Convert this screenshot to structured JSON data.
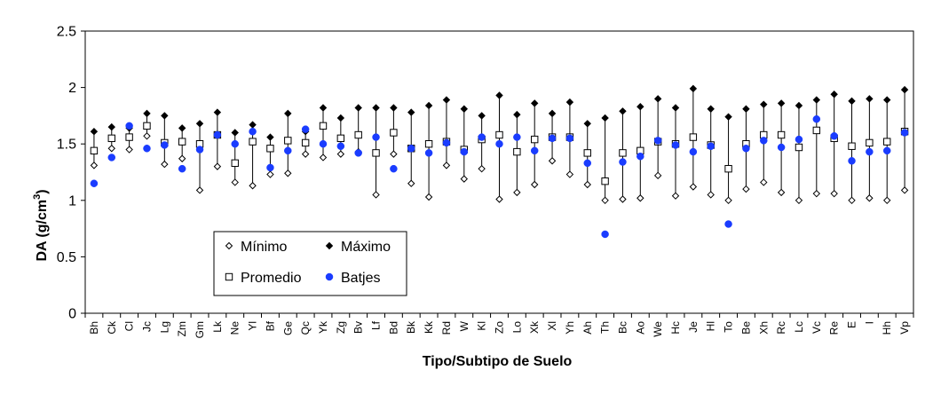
{
  "chart_data": {
    "type": "scatter",
    "xlabel": "Tipo/Subtipo de Suelo",
    "ylabel": "DA (g/cm3)",
    "ylabel_main": "DA (g/cm",
    "ylabel_sup": "3",
    "ylabel_close": ")",
    "ylim": [
      0,
      2.5
    ],
    "yticks": [
      "0",
      "0.5",
      "1",
      "1.5",
      "2",
      "2.5"
    ],
    "ytick_values": [
      0,
      0.5,
      1,
      1.5,
      2,
      2.5
    ],
    "grid": false,
    "legend_position": "bottom-left",
    "categories": [
      "Bh",
      "Ck",
      "Cl",
      "Jc",
      "Lg",
      "Zm",
      "Gm",
      "Lk",
      "Ne",
      "Yl",
      "Bf",
      "Ge",
      "Qc",
      "Yk",
      "Zg",
      "Bv",
      "Lf",
      "Bd",
      "Bk",
      "Kk",
      "Rd",
      "W",
      "Kl",
      "Zo",
      "Lo",
      "Xk",
      "Xl",
      "Yh",
      "Ah",
      "Th",
      "Bc",
      "Ao",
      "We",
      "Hc",
      "Je",
      "Hl",
      "To",
      "Be",
      "Xh",
      "Rc",
      "Lc",
      "Vc",
      "Re",
      "E",
      "I",
      "Hh",
      "Vp"
    ],
    "series": [
      {
        "name": "Mínimo",
        "marker": "diamond-open",
        "values": [
          1.31,
          1.46,
          1.45,
          1.57,
          1.32,
          1.37,
          1.09,
          1.3,
          1.16,
          1.13,
          1.23,
          1.24,
          1.41,
          1.38,
          1.41,
          1.43,
          1.05,
          1.41,
          1.15,
          1.03,
          1.31,
          1.19,
          1.28,
          1.01,
          1.07,
          1.14,
          1.35,
          1.23,
          1.14,
          1.0,
          1.01,
          1.02,
          1.22,
          1.04,
          1.12,
          1.05,
          1.0,
          1.1,
          1.16,
          1.07,
          1.0,
          1.06,
          1.06,
          1.0,
          1.02,
          1.0,
          1.09
        ]
      },
      {
        "name": "Máximo",
        "marker": "diamond-filled",
        "values": [
          1.61,
          1.65,
          1.64,
          1.77,
          1.75,
          1.64,
          1.68,
          1.78,
          1.6,
          1.67,
          1.56,
          1.77,
          1.61,
          1.82,
          1.73,
          1.82,
          1.82,
          1.82,
          1.78,
          1.84,
          1.89,
          1.81,
          1.75,
          1.93,
          1.76,
          1.86,
          1.77,
          1.87,
          1.68,
          1.73,
          1.79,
          1.83,
          1.9,
          1.82,
          1.99,
          1.81,
          1.74,
          1.81,
          1.85,
          1.86,
          1.84,
          1.89,
          1.94,
          1.88,
          1.9,
          1.89,
          1.98
        ]
      },
      {
        "name": "Promedio",
        "marker": "square-open",
        "values": [
          1.44,
          1.55,
          1.56,
          1.66,
          1.51,
          1.52,
          1.5,
          1.58,
          1.33,
          1.52,
          1.46,
          1.53,
          1.51,
          1.66,
          1.55,
          1.58,
          1.42,
          1.6,
          1.46,
          1.5,
          1.52,
          1.45,
          1.54,
          1.58,
          1.43,
          1.54,
          1.56,
          1.56,
          1.42,
          1.17,
          1.42,
          1.44,
          1.52,
          1.5,
          1.56,
          1.49,
          1.28,
          1.5,
          1.58,
          1.58,
          1.47,
          1.62,
          1.55,
          1.48,
          1.51,
          1.52,
          1.61
        ]
      },
      {
        "name": "Batjes",
        "marker": "circle-filled",
        "color": "#1a3cff",
        "values": [
          1.15,
          1.38,
          1.66,
          1.46,
          1.49,
          1.28,
          1.45,
          1.58,
          1.5,
          1.61,
          1.29,
          1.44,
          1.63,
          1.5,
          1.48,
          1.42,
          1.56,
          1.28,
          1.46,
          1.42,
          1.51,
          1.43,
          1.56,
          1.5,
          1.56,
          1.44,
          1.55,
          1.55,
          1.33,
          0.7,
          1.34,
          1.39,
          1.53,
          1.49,
          1.43,
          1.48,
          0.79,
          1.46,
          1.53,
          1.47,
          1.54,
          1.72,
          1.57,
          1.35,
          1.43,
          1.44,
          1.6
        ]
      }
    ]
  },
  "legend": {
    "items": [
      {
        "label": "Mínimo",
        "marker": "diamond-open"
      },
      {
        "label": "Máximo",
        "marker": "diamond-filled"
      },
      {
        "label": "Promedio",
        "marker": "square-open"
      },
      {
        "label": "Batjes",
        "marker": "circle-filled"
      }
    ]
  },
  "colors": {
    "batjes": "#1a3cff",
    "axis": "#000000"
  }
}
